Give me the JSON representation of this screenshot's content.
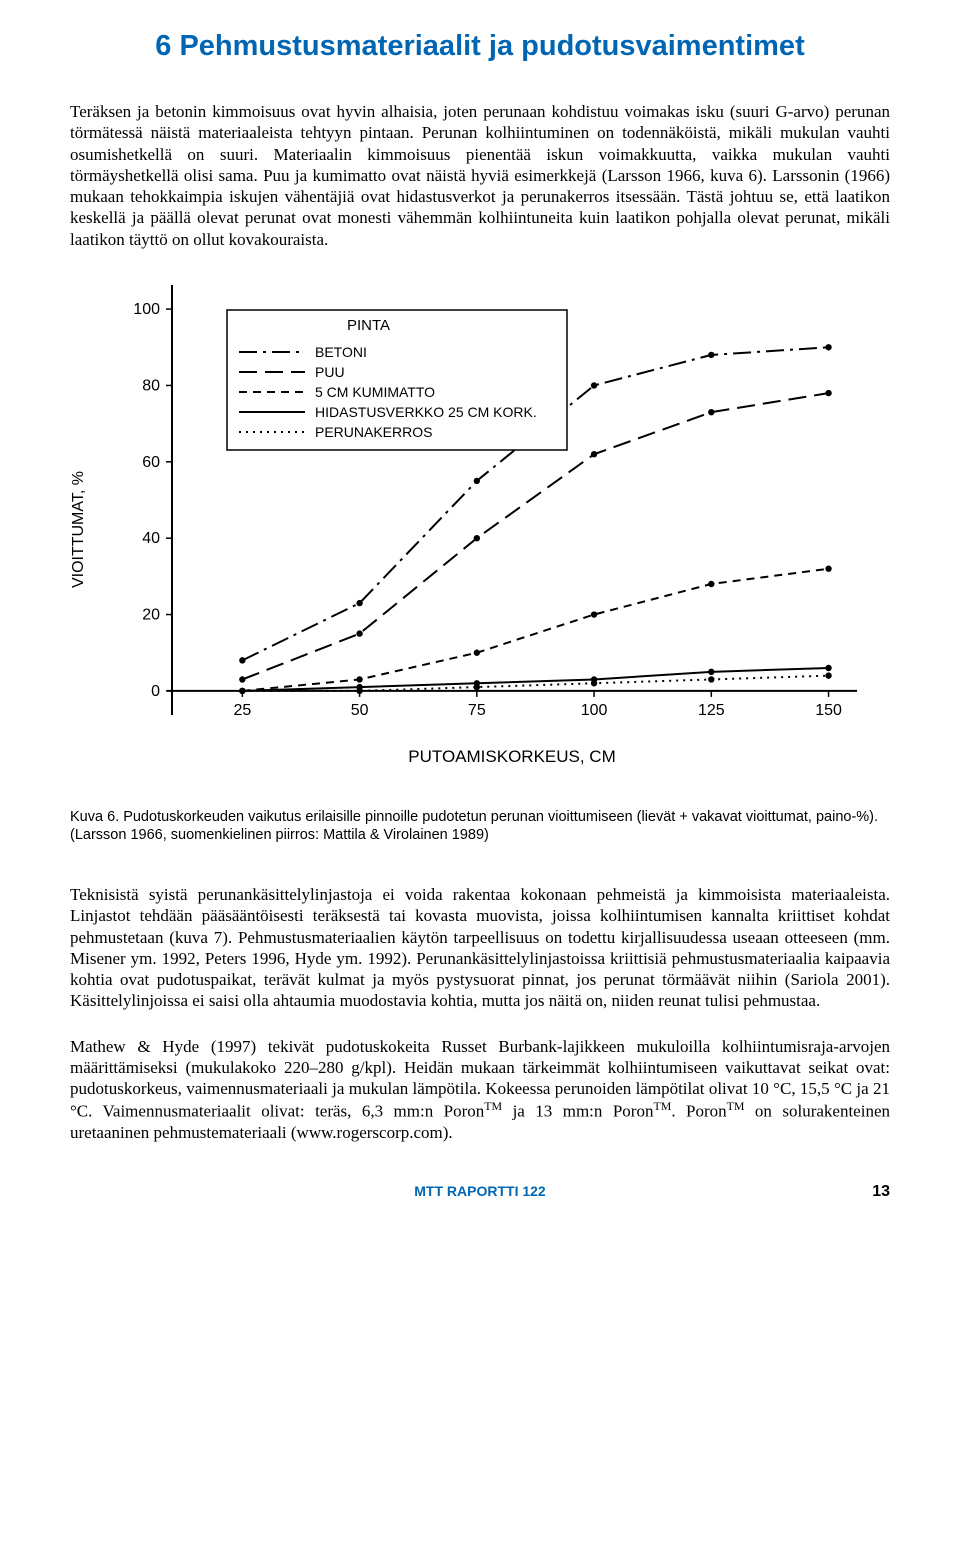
{
  "section_title": "6 Pehmustusmateriaalit ja pudotusvaimentimet",
  "para1": "Teräksen ja betonin kimmoisuus ovat hyvin alhaisia, joten perunaan kohdistuu voimakas isku (suuri G-arvo) perunan törmätessä näistä materiaaleista tehtyyn pintaan. Perunan kolhiintuminen on todennäköistä, mikäli mukulan vauhti osumishetkellä on suuri. Materiaalin kimmoisuus pienentää iskun voimakkuutta, vaikka mukulan vauhti törmäyshetkellä olisi sama. Puu ja kumimatto ovat näistä hyviä esimerkkejä (Larsson 1966, kuva 6). Larssonin (1966) mukaan tehokkaimpia iskujen vähentäjiä ovat hidastusverkot ja perunakerros itsessään. Tästä johtuu se, että laatikon keskellä ja päällä olevat perunat ovat monesti vähemmän kolhiintuneita kuin laatikon pohjalla olevat perunat, mikäli laatikon täyttö on ollut kovakouraista.",
  "chart": {
    "type": "line",
    "ylabel": "VIOITTUMAT, %",
    "xlabel": "PUTOAMISKORKEUS, CM",
    "legend_title": "PINTA",
    "xlim": [
      10,
      155
    ],
    "ylim": [
      -5,
      105
    ],
    "xticks": [
      25,
      50,
      75,
      100,
      125,
      150
    ],
    "yticks": [
      0,
      20,
      40,
      60,
      80,
      100
    ],
    "axis_color": "#000000",
    "series": [
      {
        "name": "BETONI",
        "style": "dashdot",
        "x": [
          25,
          50,
          75,
          100,
          125,
          150
        ],
        "y": [
          8,
          23,
          55,
          80,
          88,
          90
        ]
      },
      {
        "name": "PUU",
        "style": "longdash",
        "x": [
          25,
          50,
          75,
          100,
          125,
          150
        ],
        "y": [
          3,
          15,
          40,
          62,
          73,
          78
        ]
      },
      {
        "name": "5 CM KUMIMATTO",
        "style": "shortdash",
        "x": [
          25,
          50,
          75,
          100,
          125,
          150
        ],
        "y": [
          0,
          3,
          10,
          20,
          28,
          32
        ]
      },
      {
        "name": "HIDASTUSVERKKO  25 CM KORK.",
        "style": "solid",
        "x": [
          25,
          50,
          75,
          100,
          125,
          150
        ],
        "y": [
          0,
          1,
          2,
          3,
          5,
          6
        ]
      },
      {
        "name": "PERUNAKERROS",
        "style": "dotted",
        "x": [
          25,
          50,
          75,
          100,
          125,
          150
        ],
        "y": [
          0,
          0,
          1,
          2,
          3,
          4
        ]
      }
    ]
  },
  "caption": "Kuva 6. Pudotuskorkeuden vaikutus erilaisille pinnoille pudotetun perunan vioittumiseen (lievät + vakavat vioittumat, paino-%). (Larsson 1966, suomenkielinen piirros: Mattila & Virolainen 1989)",
  "para2": "Teknisistä syistä perunankäsittelylinjastoja ei voida rakentaa kokonaan pehmeistä ja kimmoisista materiaaleista. Linjastot tehdään pääsääntöisesti teräksestä tai kovasta muovista, joissa kolhiintumisen kannalta kriittiset kohdat pehmustetaan (kuva 7). Pehmustusmateriaalien käytön tarpeellisuus on todettu kirjallisuudessa useaan otteeseen (mm. Misener ym. 1992, Peters 1996, Hyde ym. 1992). Perunankäsittelylinjastoissa kriittisiä pehmustusmateriaalia kaipaavia kohtia ovat pudotuspaikat, terävät kulmat ja myös pystysuorat pinnat, jos perunat törmäävät niihin (Sariola 2001). Käsittelylinjoissa ei saisi olla ahtaumia muodostavia kohtia, mutta jos näitä on, niiden reunat tulisi pehmustaa.",
  "para3_html": "Mathew &amp; Hyde (1997) tekivät pudotuskokeita Russet Burbank-lajikkeen mukuloilla kolhiintumisraja-arvojen määrittämiseksi (mukulakoko 220–280 g/kpl). Heidän mukaan tärkeimmät kolhiintumiseen vaikuttavat seikat ovat: pudotuskorkeus, vaimennusmateriaali ja mukulan lämpötila. Kokeessa perunoiden lämpötilat olivat 10 °C, 15,5 °C ja 21 °C. Vaimennusmateriaalit olivat: teräs, 6,3 mm:n Poron<sup>TM</sup> ja 13 mm:n Poron<sup>TM</sup>. Poron<sup>TM</sup> on solurakenteinen uretaaninen pehmustemateriaali (www.rogerscorp.com).",
  "footer_text": "MTT RAPORTTI 122",
  "page_number": "13"
}
